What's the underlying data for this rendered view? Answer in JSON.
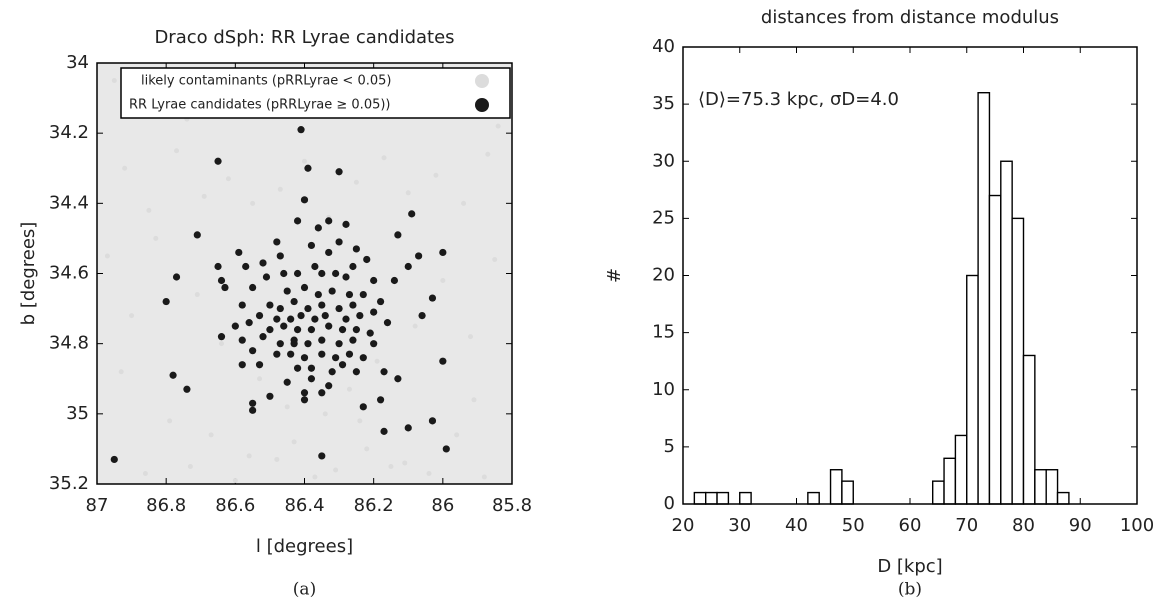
{
  "chart_data": [
    {
      "type": "scatter",
      "title": "Draco dSph: RR Lyrae candidates",
      "xlabel": "l [degrees]",
      "ylabel": "b [degrees]",
      "caption": "(a)",
      "xlim": [
        87,
        85.8
      ],
      "ylim": [
        35.2,
        34
      ],
      "xticks": [
        87,
        86.8,
        86.6,
        86.4,
        86.2,
        86,
        85.8
      ],
      "yticks": [
        34,
        34.2,
        34.4,
        34.6,
        34.8,
        35,
        35.2
      ],
      "legend": "top",
      "series": [
        {
          "name": "likely contaminants (pRRLyrae < 0.05)",
          "color": "#dcdcdc",
          "x": [
            86.95,
            86.88,
            86.81,
            86.74,
            86.66,
            86.58,
            86.51,
            86.44,
            86.36,
            86.29,
            86.21,
            86.13,
            86.06,
            85.98,
            85.9,
            85.84,
            86.92,
            86.85,
            86.77,
            86.69,
            86.62,
            86.55,
            86.47,
            86.4,
            86.33,
            86.25,
            86.17,
            86.1,
            86.02,
            85.94,
            85.87,
            86.97,
            86.9,
            86.83,
            86.71,
            86.64,
            86.53,
            86.45,
            86.34,
            86.27,
            86.19,
            86.08,
            86.0,
            85.92,
            85.85,
            86.93,
            86.79,
            86.67,
            86.56,
            86.43,
            86.31,
            86.22,
            86.11,
            85.96,
            85.88,
            86.86,
            86.73,
            86.6,
            86.48,
            86.37,
            86.24,
            86.15,
            86.04,
            85.91
          ],
          "y": [
            34.05,
            34.12,
            34.03,
            34.16,
            34.08,
            34.02,
            34.14,
            34.06,
            34.1,
            34.04,
            34.13,
            34.07,
            34.15,
            34.09,
            34.03,
            34.18,
            34.3,
            34.42,
            34.25,
            34.38,
            34.33,
            34.4,
            34.36,
            34.28,
            34.44,
            34.34,
            34.27,
            34.37,
            34.32,
            34.4,
            34.26,
            34.55,
            34.72,
            34.5,
            34.66,
            34.8,
            34.9,
            34.98,
            35.0,
            34.93,
            34.85,
            34.75,
            34.62,
            34.78,
            34.56,
            34.88,
            35.02,
            35.06,
            35.12,
            35.08,
            35.16,
            35.1,
            35.14,
            35.06,
            35.18,
            35.17,
            35.15,
            35.19,
            35.13,
            35.18,
            35.02,
            35.15,
            35.17,
            34.96
          ]
        },
        {
          "name": "RR Lyrae candidates (pRRLyrae ≥ 0.05))",
          "color": "#1a1a1a",
          "x": [
            86.41,
            86.65,
            86.39,
            86.3,
            86.4,
            86.09,
            86.71,
            86.13,
            86.0,
            86.59,
            86.3,
            86.33,
            86.42,
            86.36,
            86.28,
            86.48,
            86.47,
            86.38,
            86.33,
            86.25,
            86.22,
            86.26,
            86.77,
            86.65,
            86.64,
            86.63,
            86.57,
            86.52,
            86.51,
            86.46,
            86.42,
            86.37,
            86.35,
            86.31,
            86.28,
            86.2,
            86.14,
            86.1,
            86.03,
            86.55,
            86.8,
            86.45,
            86.4,
            86.36,
            86.32,
            86.27,
            86.23,
            86.18,
            86.58,
            86.5,
            86.47,
            86.43,
            86.39,
            86.35,
            86.3,
            86.26,
            86.2,
            86.53,
            86.48,
            86.44,
            86.41,
            86.37,
            86.34,
            86.28,
            86.24,
            86.16,
            86.06,
            86.6,
            86.56,
            86.5,
            86.46,
            86.42,
            86.38,
            86.33,
            86.29,
            86.25,
            86.21,
            86.64,
            86.58,
            86.52,
            86.47,
            86.43,
            86.39,
            86.35,
            86.3,
            86.26,
            86.2,
            86.55,
            86.48,
            86.44,
            86.4,
            86.35,
            86.31,
            86.27,
            86.23,
            86.58,
            86.53,
            86.42,
            86.38,
            86.32,
            86.29,
            86.25,
            86.17,
            86.0,
            86.78,
            86.74,
            86.45,
            86.38,
            86.33,
            86.13,
            86.4,
            86.35,
            86.5,
            86.4,
            86.18,
            86.55,
            86.55,
            86.23,
            86.03,
            86.17,
            86.1,
            85.99,
            86.35,
            86.95,
            86.07,
            86.43
          ],
          "y": [
            34.19,
            34.28,
            34.3,
            34.31,
            34.39,
            34.43,
            34.49,
            34.49,
            34.54,
            34.54,
            34.51,
            34.45,
            34.45,
            34.47,
            34.46,
            34.51,
            34.55,
            34.52,
            34.54,
            34.53,
            34.56,
            34.58,
            34.61,
            34.58,
            34.62,
            34.64,
            34.58,
            34.57,
            34.61,
            34.6,
            34.6,
            34.58,
            34.6,
            34.6,
            34.61,
            34.62,
            34.62,
            34.58,
            34.67,
            34.64,
            34.68,
            34.65,
            34.64,
            34.66,
            34.65,
            34.66,
            34.66,
            34.68,
            34.69,
            34.69,
            34.7,
            34.68,
            34.7,
            34.69,
            34.7,
            34.69,
            34.71,
            34.72,
            34.73,
            34.73,
            34.72,
            34.73,
            34.72,
            34.73,
            34.72,
            34.74,
            34.72,
            34.75,
            34.74,
            34.76,
            34.75,
            34.76,
            34.76,
            34.75,
            34.76,
            34.76,
            34.77,
            34.78,
            34.79,
            34.78,
            34.8,
            34.79,
            34.8,
            34.79,
            34.8,
            34.79,
            34.8,
            34.82,
            34.83,
            34.83,
            34.84,
            34.83,
            34.84,
            34.83,
            34.84,
            34.86,
            34.86,
            34.87,
            34.87,
            34.88,
            34.86,
            34.88,
            34.88,
            34.85,
            34.89,
            34.93,
            34.91,
            34.9,
            34.92,
            34.9,
            34.94,
            34.94,
            34.95,
            34.96,
            34.96,
            34.97,
            34.99,
            34.98,
            35.02,
            35.05,
            35.04,
            35.1,
            35.12,
            35.13,
            34.55,
            34.8
          ]
        }
      ]
    },
    {
      "type": "histogram",
      "title": "distances from distance modulus",
      "xlabel": "D [kpc]",
      "ylabel": "#",
      "caption": "(b)",
      "annotation": "⟨D⟩=75.3 kpc, σD=4.0",
      "xlim": [
        20,
        100
      ],
      "ylim": [
        0,
        40
      ],
      "xticks": [
        20,
        30,
        40,
        50,
        60,
        70,
        80,
        90,
        100
      ],
      "yticks": [
        0,
        5,
        10,
        15,
        20,
        25,
        30,
        35,
        40
      ],
      "color": "#ffffff",
      "bins": [
        22,
        24,
        26,
        28,
        30,
        32,
        34,
        36,
        38,
        40,
        42,
        44,
        46,
        48,
        50,
        52,
        54,
        56,
        58,
        60,
        62,
        64,
        66,
        68,
        70,
        72,
        74,
        76,
        78,
        80,
        82,
        84,
        86,
        88
      ],
      "values": [
        1,
        1,
        1,
        0,
        1,
        0,
        0,
        0,
        0,
        0,
        1,
        0,
        3,
        2,
        0,
        0,
        0,
        0,
        0,
        0,
        0,
        2,
        4,
        6,
        20,
        36,
        27,
        30,
        25,
        13,
        3,
        3,
        1
      ]
    }
  ]
}
